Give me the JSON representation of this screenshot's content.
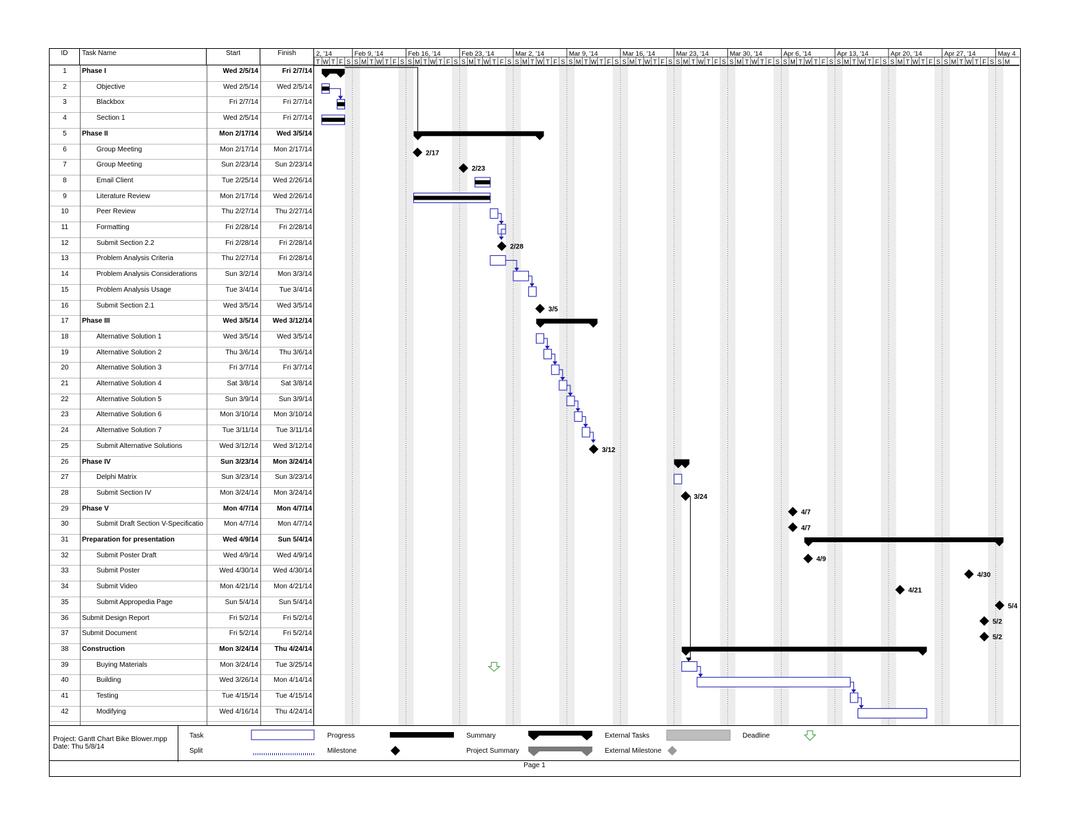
{
  "table": {
    "columns": [
      "ID",
      "Task Name",
      "Start",
      "Finish"
    ],
    "rows": [
      {
        "id": "1",
        "name": "Phase I",
        "start": "Wed 2/5/14",
        "finish": "Fri 2/7/14",
        "bold": true,
        "indent": false
      },
      {
        "id": "2",
        "name": "Objective",
        "start": "Wed 2/5/14",
        "finish": "Wed 2/5/14",
        "bold": false,
        "indent": true
      },
      {
        "id": "3",
        "name": "Blackbox",
        "start": "Fri 2/7/14",
        "finish": "Fri 2/7/14",
        "bold": false,
        "indent": true
      },
      {
        "id": "4",
        "name": "Section 1",
        "start": "Wed 2/5/14",
        "finish": "Fri 2/7/14",
        "bold": false,
        "indent": true
      },
      {
        "id": "5",
        "name": "Phase II",
        "start": "Mon 2/17/14",
        "finish": "Wed 3/5/14",
        "bold": true,
        "indent": false
      },
      {
        "id": "6",
        "name": "Group Meeting",
        "start": "Mon 2/17/14",
        "finish": "Mon 2/17/14",
        "bold": false,
        "indent": true
      },
      {
        "id": "7",
        "name": "Group Meeting",
        "start": "Sun 2/23/14",
        "finish": "Sun 2/23/14",
        "bold": false,
        "indent": true
      },
      {
        "id": "8",
        "name": "Email Client",
        "start": "Tue 2/25/14",
        "finish": "Wed 2/26/14",
        "bold": false,
        "indent": true
      },
      {
        "id": "9",
        "name": "Literature Review",
        "start": "Mon 2/17/14",
        "finish": "Wed 2/26/14",
        "bold": false,
        "indent": true
      },
      {
        "id": "10",
        "name": "Peer Review",
        "start": "Thu 2/27/14",
        "finish": "Thu 2/27/14",
        "bold": false,
        "indent": true
      },
      {
        "id": "11",
        "name": "Formatting",
        "start": "Fri 2/28/14",
        "finish": "Fri 2/28/14",
        "bold": false,
        "indent": true
      },
      {
        "id": "12",
        "name": "Submit Section 2.2",
        "start": "Fri 2/28/14",
        "finish": "Fri 2/28/14",
        "bold": false,
        "indent": true
      },
      {
        "id": "13",
        "name": "Problem Analysis Criteria",
        "start": "Thu 2/27/14",
        "finish": "Fri 2/28/14",
        "bold": false,
        "indent": true
      },
      {
        "id": "14",
        "name": "Problem Analysis Considerations",
        "start": "Sun 3/2/14",
        "finish": "Mon 3/3/14",
        "bold": false,
        "indent": true
      },
      {
        "id": "15",
        "name": "Problem Analysis Usage",
        "start": "Tue 3/4/14",
        "finish": "Tue 3/4/14",
        "bold": false,
        "indent": true
      },
      {
        "id": "16",
        "name": "Submit Section 2.1",
        "start": "Wed 3/5/14",
        "finish": "Wed 3/5/14",
        "bold": false,
        "indent": true
      },
      {
        "id": "17",
        "name": "Phase III",
        "start": "Wed 3/5/14",
        "finish": "Wed 3/12/14",
        "bold": true,
        "indent": false
      },
      {
        "id": "18",
        "name": "Alternative Solution 1",
        "start": "Wed 3/5/14",
        "finish": "Wed 3/5/14",
        "bold": false,
        "indent": true
      },
      {
        "id": "19",
        "name": "Alternative Solution 2",
        "start": "Thu 3/6/14",
        "finish": "Thu 3/6/14",
        "bold": false,
        "indent": true
      },
      {
        "id": "20",
        "name": "Alternative Solution 3",
        "start": "Fri 3/7/14",
        "finish": "Fri 3/7/14",
        "bold": false,
        "indent": true
      },
      {
        "id": "21",
        "name": "Alternative Solution 4",
        "start": "Sat 3/8/14",
        "finish": "Sat 3/8/14",
        "bold": false,
        "indent": true
      },
      {
        "id": "22",
        "name": "Alternative Solution 5",
        "start": "Sun 3/9/14",
        "finish": "Sun 3/9/14",
        "bold": false,
        "indent": true
      },
      {
        "id": "23",
        "name": "Alternative Solution 6",
        "start": "Mon 3/10/14",
        "finish": "Mon 3/10/14",
        "bold": false,
        "indent": true
      },
      {
        "id": "24",
        "name": "Alternative Solution 7",
        "start": "Tue 3/11/14",
        "finish": "Tue 3/11/14",
        "bold": false,
        "indent": true
      },
      {
        "id": "25",
        "name": "Submit Alternative Solutions",
        "start": "Wed 3/12/14",
        "finish": "Wed 3/12/14",
        "bold": false,
        "indent": true
      },
      {
        "id": "26",
        "name": "Phase IV",
        "start": "Sun 3/23/14",
        "finish": "Mon 3/24/14",
        "bold": true,
        "indent": false
      },
      {
        "id": "27",
        "name": "Delphi Matrix",
        "start": "Sun 3/23/14",
        "finish": "Sun 3/23/14",
        "bold": false,
        "indent": true
      },
      {
        "id": "28",
        "name": "Submit Section IV",
        "start": "Mon 3/24/14",
        "finish": "Mon 3/24/14",
        "bold": false,
        "indent": true
      },
      {
        "id": "29",
        "name": "Phase V",
        "start": "Mon 4/7/14",
        "finish": "Mon 4/7/14",
        "bold": true,
        "indent": false
      },
      {
        "id": "30",
        "name": "Submit Draft Section V-Specificatio",
        "start": "Mon 4/7/14",
        "finish": "Mon 4/7/14",
        "bold": false,
        "indent": true
      },
      {
        "id": "31",
        "name": "Preparation for presentation",
        "start": "Wed 4/9/14",
        "finish": "Sun 5/4/14",
        "bold": true,
        "indent": false
      },
      {
        "id": "32",
        "name": "Submit Poster Draft",
        "start": "Wed 4/9/14",
        "finish": "Wed 4/9/14",
        "bold": false,
        "indent": true
      },
      {
        "id": "33",
        "name": "Submit Poster",
        "start": "Wed 4/30/14",
        "finish": "Wed 4/30/14",
        "bold": false,
        "indent": true
      },
      {
        "id": "34",
        "name": "Submit Video",
        "start": "Mon 4/21/14",
        "finish": "Mon 4/21/14",
        "bold": false,
        "indent": true
      },
      {
        "id": "35",
        "name": "Submit Appropedia Page",
        "start": "Sun 5/4/14",
        "finish": "Sun 5/4/14",
        "bold": false,
        "indent": true
      },
      {
        "id": "36",
        "name": "Submit Design Report",
        "start": "Fri 5/2/14",
        "finish": "Fri 5/2/14",
        "bold": false,
        "indent": false
      },
      {
        "id": "37",
        "name": "Submit Document",
        "start": "Fri 5/2/14",
        "finish": "Fri 5/2/14",
        "bold": false,
        "indent": false
      },
      {
        "id": "38",
        "name": "Construction",
        "start": "Mon 3/24/14",
        "finish": "Thu 4/24/14",
        "bold": true,
        "indent": false
      },
      {
        "id": "39",
        "name": "Buying Materials",
        "start": "Mon 3/24/14",
        "finish": "Tue 3/25/14",
        "bold": false,
        "indent": true
      },
      {
        "id": "40",
        "name": "Building",
        "start": "Wed 3/26/14",
        "finish": "Mon 4/14/14",
        "bold": false,
        "indent": true
      },
      {
        "id": "41",
        "name": "Testing",
        "start": "Tue 4/15/14",
        "finish": "Tue 4/15/14",
        "bold": false,
        "indent": true
      },
      {
        "id": "42",
        "name": "Modifying",
        "start": "Wed 4/16/14",
        "finish": "Thu 4/24/14",
        "bold": false,
        "indent": true
      }
    ]
  },
  "timescale": {
    "weeks": [
      "2, '14",
      "Feb 9, '14",
      "Feb 16, '14",
      "Feb 23, '14",
      "Mar 2, '14",
      "Mar 9, '14",
      "Mar 16, '14",
      "Mar 23, '14",
      "Mar 30, '14",
      "Apr 6, '14",
      "Apr 13, '14",
      "Apr 20, '14",
      "Apr 27, '14",
      "May 4"
    ],
    "day_letters": [
      "S",
      "M",
      "T",
      "W",
      "T",
      "F",
      "S"
    ]
  },
  "chart_data": {
    "type": "gantt",
    "x_axis": {
      "start": "2014-02-04",
      "end": "2014-05-05",
      "unit": "day"
    },
    "bars": [
      {
        "row": 1,
        "kind": "summary",
        "start": "2014-02-05",
        "end": "2014-02-07"
      },
      {
        "row": 2,
        "kind": "task",
        "start": "2014-02-05",
        "end": "2014-02-05",
        "progress": 1
      },
      {
        "row": 3,
        "kind": "task",
        "start": "2014-02-07",
        "end": "2014-02-07",
        "progress": 1
      },
      {
        "row": 4,
        "kind": "task",
        "start": "2014-02-05",
        "end": "2014-02-07",
        "progress": 1
      },
      {
        "row": 5,
        "kind": "summary",
        "start": "2014-02-17",
        "end": "2014-03-05"
      },
      {
        "row": 6,
        "kind": "milestone",
        "date": "2014-02-17",
        "label": "2/17"
      },
      {
        "row": 7,
        "kind": "milestone",
        "date": "2014-02-23",
        "label": "2/23"
      },
      {
        "row": 8,
        "kind": "task",
        "start": "2014-02-25",
        "end": "2014-02-26",
        "progress": 1
      },
      {
        "row": 9,
        "kind": "task",
        "start": "2014-02-17",
        "end": "2014-02-26",
        "progress": 1
      },
      {
        "row": 10,
        "kind": "task",
        "start": "2014-02-27",
        "end": "2014-02-27",
        "progress": 0
      },
      {
        "row": 11,
        "kind": "task",
        "start": "2014-02-28",
        "end": "2014-02-28",
        "progress": 0
      },
      {
        "row": 12,
        "kind": "milestone",
        "date": "2014-02-28",
        "label": "2/28"
      },
      {
        "row": 13,
        "kind": "task",
        "start": "2014-02-27",
        "end": "2014-02-28",
        "progress": 0
      },
      {
        "row": 14,
        "kind": "task",
        "start": "2014-03-02",
        "end": "2014-03-03",
        "progress": 0
      },
      {
        "row": 15,
        "kind": "task",
        "start": "2014-03-04",
        "end": "2014-03-04",
        "progress": 0
      },
      {
        "row": 16,
        "kind": "milestone",
        "date": "2014-03-05",
        "label": "3/5"
      },
      {
        "row": 17,
        "kind": "summary",
        "start": "2014-03-05",
        "end": "2014-03-12"
      },
      {
        "row": 18,
        "kind": "task",
        "start": "2014-03-05",
        "end": "2014-03-05",
        "progress": 0
      },
      {
        "row": 19,
        "kind": "task",
        "start": "2014-03-06",
        "end": "2014-03-06",
        "progress": 0
      },
      {
        "row": 20,
        "kind": "task",
        "start": "2014-03-07",
        "end": "2014-03-07",
        "progress": 0
      },
      {
        "row": 21,
        "kind": "task",
        "start": "2014-03-08",
        "end": "2014-03-08",
        "progress": 0
      },
      {
        "row": 22,
        "kind": "task",
        "start": "2014-03-09",
        "end": "2014-03-09",
        "progress": 0
      },
      {
        "row": 23,
        "kind": "task",
        "start": "2014-03-10",
        "end": "2014-03-10",
        "progress": 0
      },
      {
        "row": 24,
        "kind": "task",
        "start": "2014-03-11",
        "end": "2014-03-11",
        "progress": 0
      },
      {
        "row": 25,
        "kind": "milestone",
        "date": "2014-03-12",
        "label": "3/12"
      },
      {
        "row": 26,
        "kind": "summary",
        "start": "2014-03-23",
        "end": "2014-03-24"
      },
      {
        "row": 27,
        "kind": "task",
        "start": "2014-03-23",
        "end": "2014-03-23",
        "progress": 0
      },
      {
        "row": 28,
        "kind": "milestone",
        "date": "2014-03-24",
        "label": "3/24"
      },
      {
        "row": 29,
        "kind": "milestone",
        "date": "2014-04-07",
        "label": "4/7"
      },
      {
        "row": 30,
        "kind": "milestone",
        "date": "2014-04-07",
        "label": "4/7"
      },
      {
        "row": 31,
        "kind": "summary",
        "start": "2014-04-09",
        "end": "2014-05-04"
      },
      {
        "row": 32,
        "kind": "milestone",
        "date": "2014-04-09",
        "label": "4/9"
      },
      {
        "row": 33,
        "kind": "milestone",
        "date": "2014-04-30",
        "label": "4/30"
      },
      {
        "row": 34,
        "kind": "milestone",
        "date": "2014-04-21",
        "label": "4/21"
      },
      {
        "row": 35,
        "kind": "milestone",
        "date": "2014-05-04",
        "label": "5/4"
      },
      {
        "row": 36,
        "kind": "milestone",
        "date": "2014-05-02",
        "label": "5/2"
      },
      {
        "row": 37,
        "kind": "milestone",
        "date": "2014-05-02",
        "label": "5/2"
      },
      {
        "row": 38,
        "kind": "summary",
        "start": "2014-03-24",
        "end": "2014-04-24"
      },
      {
        "row": 39,
        "kind": "task",
        "start": "2014-03-24",
        "end": "2014-03-25",
        "progress": 0
      },
      {
        "row": 40,
        "kind": "task",
        "start": "2014-03-26",
        "end": "2014-04-14",
        "progress": 0
      },
      {
        "row": 41,
        "kind": "task",
        "start": "2014-04-15",
        "end": "2014-04-15",
        "progress": 0
      },
      {
        "row": 42,
        "kind": "task",
        "start": "2014-04-16",
        "end": "2014-04-24",
        "progress": 0
      }
    ],
    "deadline": {
      "row": 39,
      "date": "2014-02-27"
    }
  },
  "legend": {
    "project": "Project: Gantt Chart Bike Blower.mpp",
    "date": "Date: Thu 5/8/14",
    "items": {
      "task": "Task",
      "split": "Split",
      "progress": "Progress",
      "milestone": "Milestone",
      "summary": "Summary",
      "project_summary": "Project Summary",
      "external_tasks": "External Tasks",
      "external_milestone": "External Milestone",
      "deadline": "Deadline"
    }
  },
  "footer": {
    "page": "Page 1"
  },
  "colors": {
    "link": "#1c1cb4",
    "task_border": "#1c1cb4",
    "deadline": "#3a9a3a",
    "external": "#bdbdbd",
    "project_summary": "#7a7a7a"
  }
}
